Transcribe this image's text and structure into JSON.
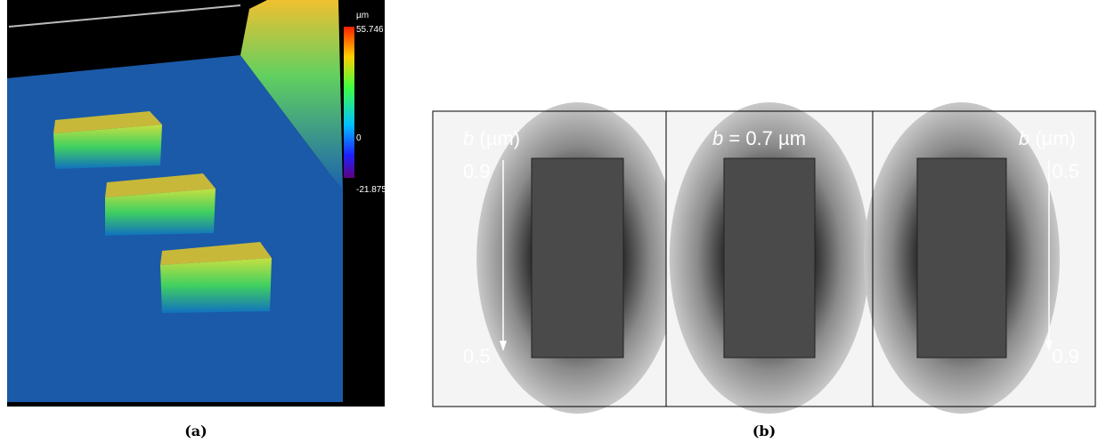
{
  "panel_a": {
    "colorbar": {
      "unit": "µm",
      "max": "55.746",
      "mid": "0",
      "min": "-21.875"
    },
    "caption": "(a)"
  },
  "panel_b": {
    "frames": [
      {
        "variable": "b",
        "label": " (µm)",
        "top": "0.9",
        "bottom": "0.5"
      },
      {
        "variable": "b",
        "label": " = 0.7 µm"
      },
      {
        "variable": "b",
        "label": " (µm)",
        "top": "0.5",
        "bottom": "0.9"
      }
    ],
    "caption": "(b)"
  }
}
